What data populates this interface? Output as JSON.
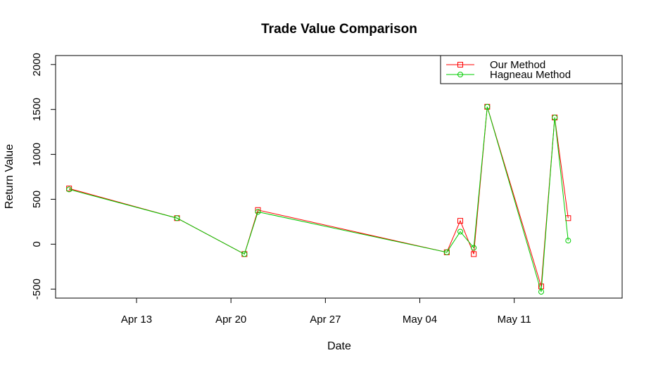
{
  "chart_data": {
    "type": "line",
    "title": "Trade Value Comparison",
    "xlabel": "Date",
    "ylabel": "Return Value",
    "x_ticks": [
      {
        "label": "Apr 13",
        "date": "2015-04-13"
      },
      {
        "label": "Apr 20",
        "date": "2015-04-20"
      },
      {
        "label": "Apr 27",
        "date": "2015-04-27"
      },
      {
        "label": "May 04",
        "date": "2015-05-04"
      },
      {
        "label": "May 11",
        "date": "2015-05-11"
      }
    ],
    "y_ticks": [
      -500,
      0,
      500,
      1000,
      1500,
      2000
    ],
    "xlim": [
      "2015-04-07",
      "2015-05-19"
    ],
    "ylim": [
      -600,
      2100
    ],
    "x": [
      "2015-04-08",
      "2015-04-16",
      "2015-04-21",
      "2015-04-22",
      "2015-05-06",
      "2015-05-07",
      "2015-05-08",
      "2015-05-09",
      "2015-05-13",
      "2015-05-14",
      "2015-05-15"
    ],
    "series": [
      {
        "name": "Our Method",
        "color": "#ff0000",
        "marker": "square",
        "values": [
          620,
          290,
          -110,
          380,
          -90,
          260,
          -110,
          1530,
          -470,
          1410,
          290
        ]
      },
      {
        "name": "Hagneau Method",
        "color": "#00cc00",
        "marker": "circle",
        "values": [
          610,
          290,
          -110,
          360,
          -90,
          140,
          -40,
          1530,
          -530,
          1410,
          40
        ]
      }
    ],
    "legend_position": "top-right",
    "grid": false
  }
}
